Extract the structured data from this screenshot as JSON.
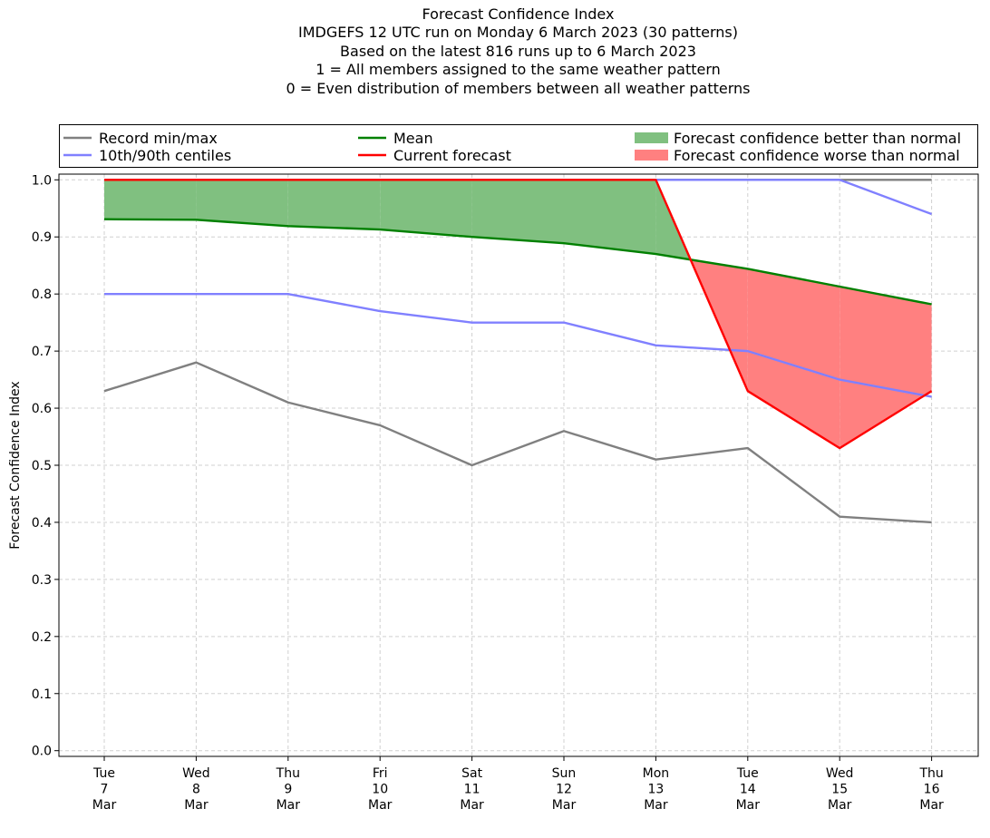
{
  "title_lines": [
    "Forecast Confidence Index",
    "IMDGEFS 12 UTC run on Monday 6 March 2023 (30 patterns)",
    "Based on the latest 816 runs up to 6 March 2023",
    "1 = All members assigned to the same weather pattern",
    "0 = Even distribution of members between all weather patterns"
  ],
  "colors": {
    "record": "#808080",
    "centiles": "#8080ff",
    "mean": "#008000",
    "current": "#ff0000",
    "better_fill": "#80c080",
    "worse_fill": "#ff8080",
    "grid": "#d0d0d0"
  },
  "chart_data": {
    "type": "line",
    "title": "Forecast Confidence Index",
    "xlabel": "",
    "ylabel": "Forecast Confidence Index",
    "ylim": [
      -0.01,
      1.01
    ],
    "yticks": [
      0.0,
      0.1,
      0.2,
      0.3,
      0.4,
      0.5,
      0.6,
      0.7,
      0.8,
      0.9,
      1.0
    ],
    "ytick_labels": [
      "0.0",
      "0.1",
      "0.2",
      "0.3",
      "0.4",
      "0.5",
      "0.6",
      "0.7",
      "0.8",
      "0.9",
      "1.0"
    ],
    "grid": true,
    "legend_position": "top",
    "categories": [
      [
        "Tue",
        "7",
        "Mar"
      ],
      [
        "Wed",
        "8",
        "Mar"
      ],
      [
        "Thu",
        "9",
        "Mar"
      ],
      [
        "Fri",
        "10",
        "Mar"
      ],
      [
        "Sat",
        "11",
        "Mar"
      ],
      [
        "Sun",
        "12",
        "Mar"
      ],
      [
        "Mon",
        "13",
        "Mar"
      ],
      [
        "Tue",
        "14",
        "Mar"
      ],
      [
        "Wed",
        "15",
        "Mar"
      ],
      [
        "Thu",
        "16",
        "Mar"
      ]
    ],
    "series": [
      {
        "name": "Record max",
        "legend": "Record min/max",
        "key": "record",
        "values": [
          1.0,
          1.0,
          1.0,
          1.0,
          1.0,
          1.0,
          1.0,
          1.0,
          1.0,
          1.0
        ]
      },
      {
        "name": "Record min",
        "key": "record",
        "values": [
          0.63,
          0.68,
          0.61,
          0.57,
          0.5,
          0.56,
          0.51,
          0.53,
          0.41,
          0.4
        ]
      },
      {
        "name": "90th centile",
        "legend": "10th/90th centiles",
        "key": "centiles",
        "values": [
          1.0,
          1.0,
          1.0,
          1.0,
          1.0,
          1.0,
          1.0,
          1.0,
          1.0,
          0.94
        ]
      },
      {
        "name": "10th centile",
        "key": "centiles",
        "values": [
          0.8,
          0.8,
          0.8,
          0.77,
          0.75,
          0.75,
          0.71,
          0.7,
          0.65,
          0.62
        ]
      },
      {
        "name": "Mean",
        "legend": "Mean",
        "key": "mean",
        "values": [
          0.931,
          0.93,
          0.919,
          0.913,
          0.9,
          0.889,
          0.87,
          0.844,
          0.813,
          0.782
        ]
      },
      {
        "name": "Current forecast",
        "legend": "Current forecast",
        "key": "current",
        "values": [
          1.0,
          1.0,
          1.0,
          1.0,
          1.0,
          1.0,
          1.0,
          0.63,
          0.53,
          0.63
        ]
      }
    ],
    "fills": [
      {
        "legend": "Forecast confidence better than normal",
        "key": "better_fill"
      },
      {
        "legend": "Forecast confidence worse than normal",
        "key": "worse_fill"
      }
    ]
  }
}
